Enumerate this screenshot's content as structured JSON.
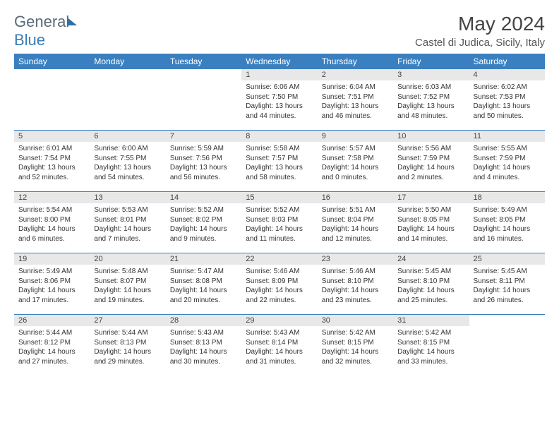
{
  "brand": {
    "part1": "General",
    "part2": "Blue"
  },
  "title": "May 2024",
  "location": "Castel di Judica, Sicily, Italy",
  "day_headers": [
    "Sunday",
    "Monday",
    "Tuesday",
    "Wednesday",
    "Thursday",
    "Friday",
    "Saturday"
  ],
  "colors": {
    "header_bg": "#3a80c0",
    "daynum_bg": "#e8e8e8",
    "week_border": "#3a80c0",
    "logo_gray": "#5a6a78",
    "logo_blue": "#3b7cb8"
  },
  "weeks": [
    [
      {
        "n": "",
        "empty": true
      },
      {
        "n": "",
        "empty": true
      },
      {
        "n": "",
        "empty": true
      },
      {
        "n": "1",
        "sr": "Sunrise: 6:06 AM",
        "ss": "Sunset: 7:50 PM",
        "d1": "Daylight: 13 hours",
        "d2": "and 44 minutes."
      },
      {
        "n": "2",
        "sr": "Sunrise: 6:04 AM",
        "ss": "Sunset: 7:51 PM",
        "d1": "Daylight: 13 hours",
        "d2": "and 46 minutes."
      },
      {
        "n": "3",
        "sr": "Sunrise: 6:03 AM",
        "ss": "Sunset: 7:52 PM",
        "d1": "Daylight: 13 hours",
        "d2": "and 48 minutes."
      },
      {
        "n": "4",
        "sr": "Sunrise: 6:02 AM",
        "ss": "Sunset: 7:53 PM",
        "d1": "Daylight: 13 hours",
        "d2": "and 50 minutes."
      }
    ],
    [
      {
        "n": "5",
        "sr": "Sunrise: 6:01 AM",
        "ss": "Sunset: 7:54 PM",
        "d1": "Daylight: 13 hours",
        "d2": "and 52 minutes."
      },
      {
        "n": "6",
        "sr": "Sunrise: 6:00 AM",
        "ss": "Sunset: 7:55 PM",
        "d1": "Daylight: 13 hours",
        "d2": "and 54 minutes."
      },
      {
        "n": "7",
        "sr": "Sunrise: 5:59 AM",
        "ss": "Sunset: 7:56 PM",
        "d1": "Daylight: 13 hours",
        "d2": "and 56 minutes."
      },
      {
        "n": "8",
        "sr": "Sunrise: 5:58 AM",
        "ss": "Sunset: 7:57 PM",
        "d1": "Daylight: 13 hours",
        "d2": "and 58 minutes."
      },
      {
        "n": "9",
        "sr": "Sunrise: 5:57 AM",
        "ss": "Sunset: 7:58 PM",
        "d1": "Daylight: 14 hours",
        "d2": "and 0 minutes."
      },
      {
        "n": "10",
        "sr": "Sunrise: 5:56 AM",
        "ss": "Sunset: 7:59 PM",
        "d1": "Daylight: 14 hours",
        "d2": "and 2 minutes."
      },
      {
        "n": "11",
        "sr": "Sunrise: 5:55 AM",
        "ss": "Sunset: 7:59 PM",
        "d1": "Daylight: 14 hours",
        "d2": "and 4 minutes."
      }
    ],
    [
      {
        "n": "12",
        "sr": "Sunrise: 5:54 AM",
        "ss": "Sunset: 8:00 PM",
        "d1": "Daylight: 14 hours",
        "d2": "and 6 minutes."
      },
      {
        "n": "13",
        "sr": "Sunrise: 5:53 AM",
        "ss": "Sunset: 8:01 PM",
        "d1": "Daylight: 14 hours",
        "d2": "and 7 minutes."
      },
      {
        "n": "14",
        "sr": "Sunrise: 5:52 AM",
        "ss": "Sunset: 8:02 PM",
        "d1": "Daylight: 14 hours",
        "d2": "and 9 minutes."
      },
      {
        "n": "15",
        "sr": "Sunrise: 5:52 AM",
        "ss": "Sunset: 8:03 PM",
        "d1": "Daylight: 14 hours",
        "d2": "and 11 minutes."
      },
      {
        "n": "16",
        "sr": "Sunrise: 5:51 AM",
        "ss": "Sunset: 8:04 PM",
        "d1": "Daylight: 14 hours",
        "d2": "and 12 minutes."
      },
      {
        "n": "17",
        "sr": "Sunrise: 5:50 AM",
        "ss": "Sunset: 8:05 PM",
        "d1": "Daylight: 14 hours",
        "d2": "and 14 minutes."
      },
      {
        "n": "18",
        "sr": "Sunrise: 5:49 AM",
        "ss": "Sunset: 8:05 PM",
        "d1": "Daylight: 14 hours",
        "d2": "and 16 minutes."
      }
    ],
    [
      {
        "n": "19",
        "sr": "Sunrise: 5:49 AM",
        "ss": "Sunset: 8:06 PM",
        "d1": "Daylight: 14 hours",
        "d2": "and 17 minutes."
      },
      {
        "n": "20",
        "sr": "Sunrise: 5:48 AM",
        "ss": "Sunset: 8:07 PM",
        "d1": "Daylight: 14 hours",
        "d2": "and 19 minutes."
      },
      {
        "n": "21",
        "sr": "Sunrise: 5:47 AM",
        "ss": "Sunset: 8:08 PM",
        "d1": "Daylight: 14 hours",
        "d2": "and 20 minutes."
      },
      {
        "n": "22",
        "sr": "Sunrise: 5:46 AM",
        "ss": "Sunset: 8:09 PM",
        "d1": "Daylight: 14 hours",
        "d2": "and 22 minutes."
      },
      {
        "n": "23",
        "sr": "Sunrise: 5:46 AM",
        "ss": "Sunset: 8:10 PM",
        "d1": "Daylight: 14 hours",
        "d2": "and 23 minutes."
      },
      {
        "n": "24",
        "sr": "Sunrise: 5:45 AM",
        "ss": "Sunset: 8:10 PM",
        "d1": "Daylight: 14 hours",
        "d2": "and 25 minutes."
      },
      {
        "n": "25",
        "sr": "Sunrise: 5:45 AM",
        "ss": "Sunset: 8:11 PM",
        "d1": "Daylight: 14 hours",
        "d2": "and 26 minutes."
      }
    ],
    [
      {
        "n": "26",
        "sr": "Sunrise: 5:44 AM",
        "ss": "Sunset: 8:12 PM",
        "d1": "Daylight: 14 hours",
        "d2": "and 27 minutes."
      },
      {
        "n": "27",
        "sr": "Sunrise: 5:44 AM",
        "ss": "Sunset: 8:13 PM",
        "d1": "Daylight: 14 hours",
        "d2": "and 29 minutes."
      },
      {
        "n": "28",
        "sr": "Sunrise: 5:43 AM",
        "ss": "Sunset: 8:13 PM",
        "d1": "Daylight: 14 hours",
        "d2": "and 30 minutes."
      },
      {
        "n": "29",
        "sr": "Sunrise: 5:43 AM",
        "ss": "Sunset: 8:14 PM",
        "d1": "Daylight: 14 hours",
        "d2": "and 31 minutes."
      },
      {
        "n": "30",
        "sr": "Sunrise: 5:42 AM",
        "ss": "Sunset: 8:15 PM",
        "d1": "Daylight: 14 hours",
        "d2": "and 32 minutes."
      },
      {
        "n": "31",
        "sr": "Sunrise: 5:42 AM",
        "ss": "Sunset: 8:15 PM",
        "d1": "Daylight: 14 hours",
        "d2": "and 33 minutes."
      },
      {
        "n": "",
        "empty": true
      }
    ]
  ]
}
